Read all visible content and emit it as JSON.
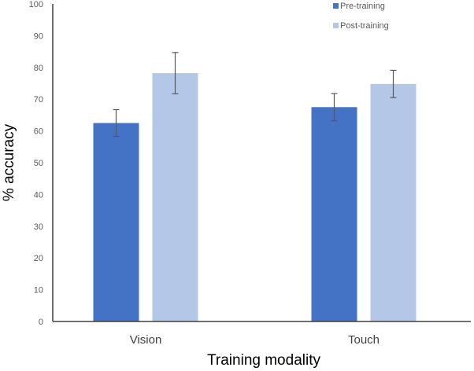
{
  "chart_data": {
    "type": "bar",
    "title": "",
    "xlabel": "Training modality",
    "ylabel": "% accuracy",
    "categories": [
      "Vision",
      "Touch"
    ],
    "series": [
      {
        "name": "Pre-training",
        "color": "#4472c4",
        "values": [
          62.5,
          67.5
        ],
        "error": [
          4.2,
          4.3
        ]
      },
      {
        "name": "Post-training",
        "color": "#b4c7e7",
        "values": [
          78.2,
          74.8
        ],
        "error": [
          6.5,
          4.3
        ]
      }
    ],
    "ylim": [
      0,
      100
    ],
    "yticks": [
      0,
      10,
      20,
      30,
      40,
      50,
      60,
      70,
      80,
      90,
      100
    ],
    "grid": false,
    "legend_position": "top-right"
  }
}
